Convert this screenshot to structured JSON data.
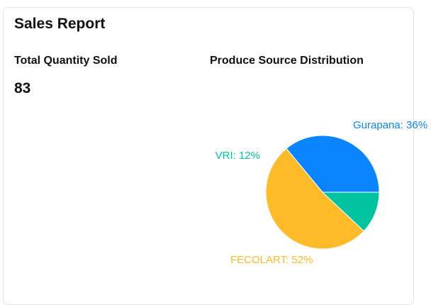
{
  "report": {
    "title": "Sales Report",
    "quantity_title": "Total Quantity Sold",
    "quantity_value": "83",
    "distribution_title": "Produce Source Distribution"
  },
  "chart_data": {
    "type": "pie",
    "title": "Produce Source Distribution",
    "slices": [
      {
        "label": "Gurapana: 36%",
        "name": "Gurapana",
        "value": 36,
        "color": "#0a84ff"
      },
      {
        "label": "FECOLART: 52%",
        "name": "FECOLART",
        "value": 52,
        "color": "#ffbb28"
      },
      {
        "label": "VRI: 12%",
        "name": "VRI",
        "value": 12,
        "color": "#00c49f"
      }
    ]
  }
}
